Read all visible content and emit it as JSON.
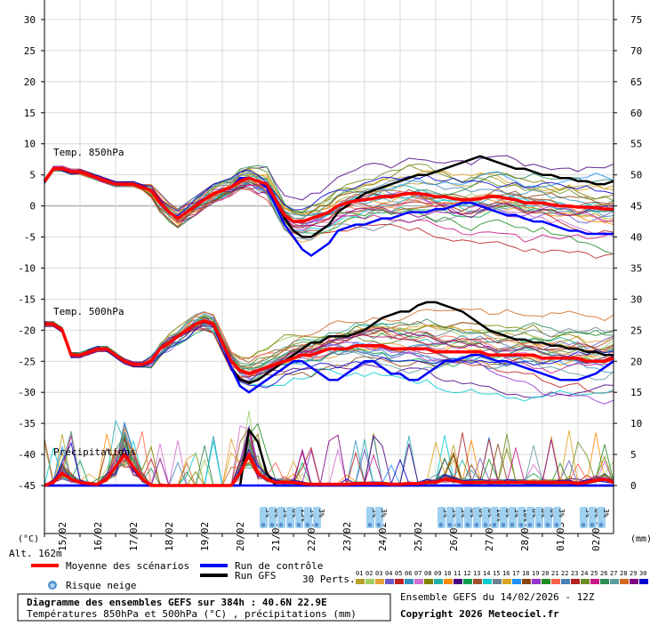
{
  "chart_data": {
    "type": "line",
    "title": "Diagramme des ensembles GEFS sur 384h : 40.6N 22.9E",
    "subtitle": "Températures 850hPa et 500hPa (°C) , précipitations (mm)",
    "run_label": "Ensemble GEFS du 14/02/2026 - 12Z",
    "copyright": "Copyright 2026 Meteociel.fr",
    "altitude": "Alt. 162m",
    "left_unit": "(°C)",
    "right_unit": "(mm)",
    "ylim_left": [
      -45,
      30
    ],
    "ylim_right": [
      0,
      75
    ],
    "left_ticks": [
      "30",
      "25",
      "20",
      "15",
      "10",
      "5",
      "0",
      "-5",
      "-10",
      "-15",
      "-20",
      "-25",
      "-30",
      "-35",
      "-40",
      "-45"
    ],
    "right_ticks": [
      "75",
      "70",
      "65",
      "60",
      "55",
      "50",
      "45",
      "40",
      "35",
      "30",
      "25",
      "20",
      "15",
      "10",
      "5",
      "0"
    ],
    "x_labels": [
      "15/02",
      "16/02",
      "17/02",
      "18/02",
      "19/02",
      "20/02",
      "21/02",
      "22/02",
      "23/02",
      "24/02",
      "25/02",
      "26/02",
      "27/02",
      "28/02",
      "01/03",
      "02/03"
    ],
    "x_steps": 64,
    "section_labels": [
      "Temp. 850hPa",
      "Temp. 500hPa",
      "Précipitations"
    ],
    "legend": {
      "mean": "Moyenne des scénarios",
      "control": "Run de contrôle",
      "gfs": "Run GFS",
      "snow": "Risque neige",
      "perts": "30 Perts."
    },
    "pert_codes": [
      "01",
      "02",
      "03",
      "04",
      "05",
      "06",
      "07",
      "08",
      "09",
      "10",
      "11",
      "12",
      "13",
      "14",
      "15",
      "16",
      "17",
      "18",
      "19",
      "20",
      "21",
      "22",
      "23",
      "24",
      "25",
      "26",
      "27",
      "28",
      "29",
      "30"
    ],
    "pert_colors": [
      "#b8a028",
      "#9ecf63",
      "#e8a23a",
      "#6a5acd",
      "#c02020",
      "#3090c0",
      "#d070d0",
      "#808000",
      "#20b2aa",
      "#ff8c00",
      "#4b0082",
      "#00a050",
      "#a0522d",
      "#00ced1",
      "#708090",
      "#daa520",
      "#1e90ff",
      "#8b4513",
      "#9932cc",
      "#228b22",
      "#ff6347",
      "#4682b4",
      "#b22222",
      "#6b8e23",
      "#c71585",
      "#2e8b57",
      "#5f9ea0",
      "#d2691e",
      "#800080",
      "#0000cd"
    ],
    "colors": {
      "mean": "#ff0000",
      "control": "#0000ff",
      "gfs": "#000000"
    },
    "series": [
      {
        "name": "Temp. 850hPa - Moyenne des scénarios",
        "values": [
          4,
          6,
          6,
          5.5,
          5.5,
          5,
          4.5,
          4,
          3.5,
          3.5,
          3.5,
          3,
          2.5,
          0.5,
          -1,
          -2,
          -1,
          0,
          1,
          2,
          2.5,
          3,
          4,
          4.5,
          4,
          3.5,
          1,
          -1.5,
          -2.5,
          -2.5,
          -2,
          -1.5,
          -1,
          0,
          0.5,
          0.8,
          1,
          1.2,
          1.5,
          1.5,
          1.8,
          2,
          2,
          1.8,
          1.5,
          1.5,
          1.2,
          1,
          1,
          1.2,
          1.5,
          1.5,
          1.2,
          1,
          0.5,
          0.5,
          0.5,
          0.2,
          0,
          0,
          -0.2,
          -0.2,
          -0.3,
          -0.5,
          -0.5
        ]
      },
      {
        "name": "Temp. 850hPa - Run de contrôle",
        "values": [
          4,
          6,
          6,
          5.5,
          5.5,
          5,
          4.5,
          4,
          3.5,
          3.5,
          3.5,
          3,
          2.5,
          0.5,
          -1,
          -2,
          -1,
          0,
          1,
          2,
          2.5,
          3,
          4.5,
          4.5,
          4,
          3,
          0,
          -3,
          -5,
          -7,
          -8,
          -7,
          -6,
          -4,
          -3.5,
          -3,
          -3,
          -2.5,
          -2,
          -2,
          -1.5,
          -1,
          -1,
          -1,
          -0.5,
          -0.5,
          0,
          0.5,
          0.5,
          0,
          -0.5,
          -1,
          -1.5,
          -1.5,
          -2,
          -2.5,
          -2.5,
          -3,
          -3.5,
          -4,
          -4,
          -4.5,
          -4.5,
          -4.5,
          -4.5
        ]
      },
      {
        "name": "Temp. 850hPa - Run GFS",
        "values": [
          4,
          6,
          6,
          5.5,
          5.5,
          5,
          4.5,
          4,
          3.5,
          3.5,
          3.5,
          3,
          2.5,
          0.5,
          -1,
          -2,
          -1,
          0,
          1,
          2,
          2.5,
          3,
          4.5,
          4.5,
          4,
          3,
          1,
          -2,
          -4,
          -5,
          -5,
          -4,
          -3,
          -1,
          0,
          1,
          2,
          2.5,
          3,
          3.5,
          4,
          4.5,
          5,
          5,
          5.5,
          6,
          6.5,
          7,
          7.5,
          8,
          7.5,
          7,
          6.5,
          6,
          6,
          5.5,
          5,
          5,
          4.5,
          4.5,
          4,
          4,
          3.5,
          3.5,
          4
        ]
      },
      {
        "name": "Temp. 500hPa - Moyenne des scénarios",
        "values": [
          -19,
          -19,
          -20,
          -24,
          -24,
          -23.5,
          -23,
          -23,
          -24,
          -25,
          -25.5,
          -25.5,
          -25,
          -23,
          -22,
          -21,
          -20,
          -19,
          -18.5,
          -19,
          -22,
          -25,
          -26.5,
          -27,
          -26.5,
          -26,
          -25.5,
          -25,
          -24.5,
          -24,
          -24,
          -23.5,
          -23,
          -23,
          -23,
          -22.5,
          -22.5,
          -22.5,
          -22.5,
          -23,
          -23,
          -23,
          -23,
          -23,
          -23.5,
          -23.5,
          -23.5,
          -23.5,
          -23.5,
          -23.5,
          -24,
          -24,
          -24,
          -24,
          -24,
          -24,
          -24.5,
          -24.5,
          -24.5,
          -24.5,
          -24.5,
          -25,
          -25,
          -25,
          -24.5
        ]
      },
      {
        "name": "Temp. 500hPa - Run de contrôle",
        "values": [
          -19,
          -19,
          -20,
          -24,
          -24,
          -23.5,
          -23,
          -23,
          -24,
          -25,
          -25.5,
          -25.5,
          -25,
          -23,
          -22,
          -21,
          -20,
          -19,
          -18.5,
          -19,
          -22,
          -26,
          -29,
          -30,
          -29,
          -28,
          -27,
          -26,
          -25,
          -25,
          -26,
          -27,
          -28,
          -28,
          -27,
          -26,
          -25,
          -25,
          -26,
          -27,
          -27,
          -28,
          -28,
          -27,
          -26,
          -25,
          -25,
          -24.5,
          -24,
          -24,
          -24.5,
          -25,
          -25,
          -25.5,
          -26,
          -26.5,
          -27,
          -27.5,
          -28,
          -28,
          -28,
          -27.5,
          -27,
          -26,
          -25
        ]
      },
      {
        "name": "Temp. 500hPa - Run GFS",
        "values": [
          -19,
          -19,
          -20,
          -24,
          -24,
          -23.5,
          -23,
          -23,
          -24,
          -25,
          -25.5,
          -25.5,
          -25,
          -23,
          -22,
          -21,
          -20,
          -19,
          -18.5,
          -19,
          -22,
          -26,
          -28,
          -28.5,
          -28,
          -27,
          -26,
          -25,
          -24,
          -23,
          -22,
          -22,
          -21,
          -21,
          -21,
          -20.5,
          -20,
          -19,
          -18,
          -17.5,
          -17,
          -17,
          -16,
          -15.5,
          -15.5,
          -16,
          -16.5,
          -17,
          -18,
          -19,
          -20,
          -20.5,
          -21,
          -21.5,
          -21.5,
          -22,
          -22,
          -22.5,
          -22.5,
          -23,
          -23,
          -23.5,
          -23.5,
          -24,
          -24
        ]
      },
      {
        "name": "Précipitations - Moyenne des scénarios",
        "values": [
          0,
          0.5,
          2,
          1,
          0.5,
          0.3,
          0.2,
          1,
          3,
          5,
          3,
          1,
          0,
          0,
          0,
          0,
          0,
          0,
          0,
          0,
          0,
          0,
          2,
          5,
          2,
          1,
          0.5,
          0.5,
          0.5,
          0.3,
          0.2,
          0.2,
          0.2,
          0.2,
          0.2,
          0.3,
          0.3,
          0.3,
          0.3,
          0.2,
          0.2,
          0.3,
          0.3,
          0.5,
          0.5,
          1,
          0.8,
          0.5,
          0.5,
          0.5,
          0.5,
          0.5,
          0.5,
          0.5,
          0.5,
          0.5,
          0.5,
          0.5,
          0.5,
          0.5,
          0.3,
          0.5,
          0.8,
          1,
          0.5
        ]
      },
      {
        "name": "Précipitations - Run de contrôle",
        "values": [
          0,
          0,
          0,
          0,
          0,
          0,
          0,
          0,
          0,
          0,
          0,
          0,
          0,
          0,
          0,
          0,
          0,
          0,
          0,
          0,
          0,
          0,
          0,
          0,
          0,
          0,
          0,
          0,
          0,
          0,
          0,
          0,
          0,
          0,
          0,
          0,
          0,
          0,
          0,
          0,
          0,
          0,
          0,
          0,
          0,
          0,
          0,
          0,
          0,
          0,
          0,
          0,
          0,
          0,
          0,
          0,
          0,
          0,
          0,
          0,
          0,
          0,
          0,
          0,
          0
        ]
      },
      {
        "name": "Précipitations - Run GFS",
        "values": [
          0,
          0,
          0,
          0,
          0,
          0,
          0,
          0,
          0,
          0,
          0,
          0,
          0,
          0,
          0,
          0,
          0,
          0,
          0,
          0,
          0,
          0,
          0,
          9,
          7,
          2,
          0,
          0,
          0,
          0,
          0,
          0,
          0,
          0,
          0,
          0,
          0,
          0,
          0,
          0,
          0,
          0,
          0,
          0,
          0,
          0,
          0,
          0,
          0,
          0,
          0,
          0,
          0,
          0,
          0,
          0,
          0,
          0,
          0,
          0,
          0,
          0,
          0,
          0,
          0
        ]
      }
    ],
    "snow_risk": [
      {
        "date_index": 6,
        "steps": [
          "3%",
          "6%",
          "3%",
          "6%",
          "13%",
          "3%",
          "3%"
        ]
      },
      {
        "date_index": 9,
        "steps": [
          "3%",
          "3%"
        ]
      },
      {
        "date_index": 11,
        "steps": [
          "3%",
          "3%",
          "3%",
          "6%",
          "6%",
          "6%",
          "10%",
          "6%",
          "3%"
        ]
      },
      {
        "date_index": 13,
        "steps": [
          "3%",
          "10%",
          "6%",
          "6%",
          "6%",
          "3%"
        ]
      },
      {
        "date_index": 15,
        "steps": [
          "3%",
          "6%",
          "3%"
        ]
      }
    ]
  }
}
